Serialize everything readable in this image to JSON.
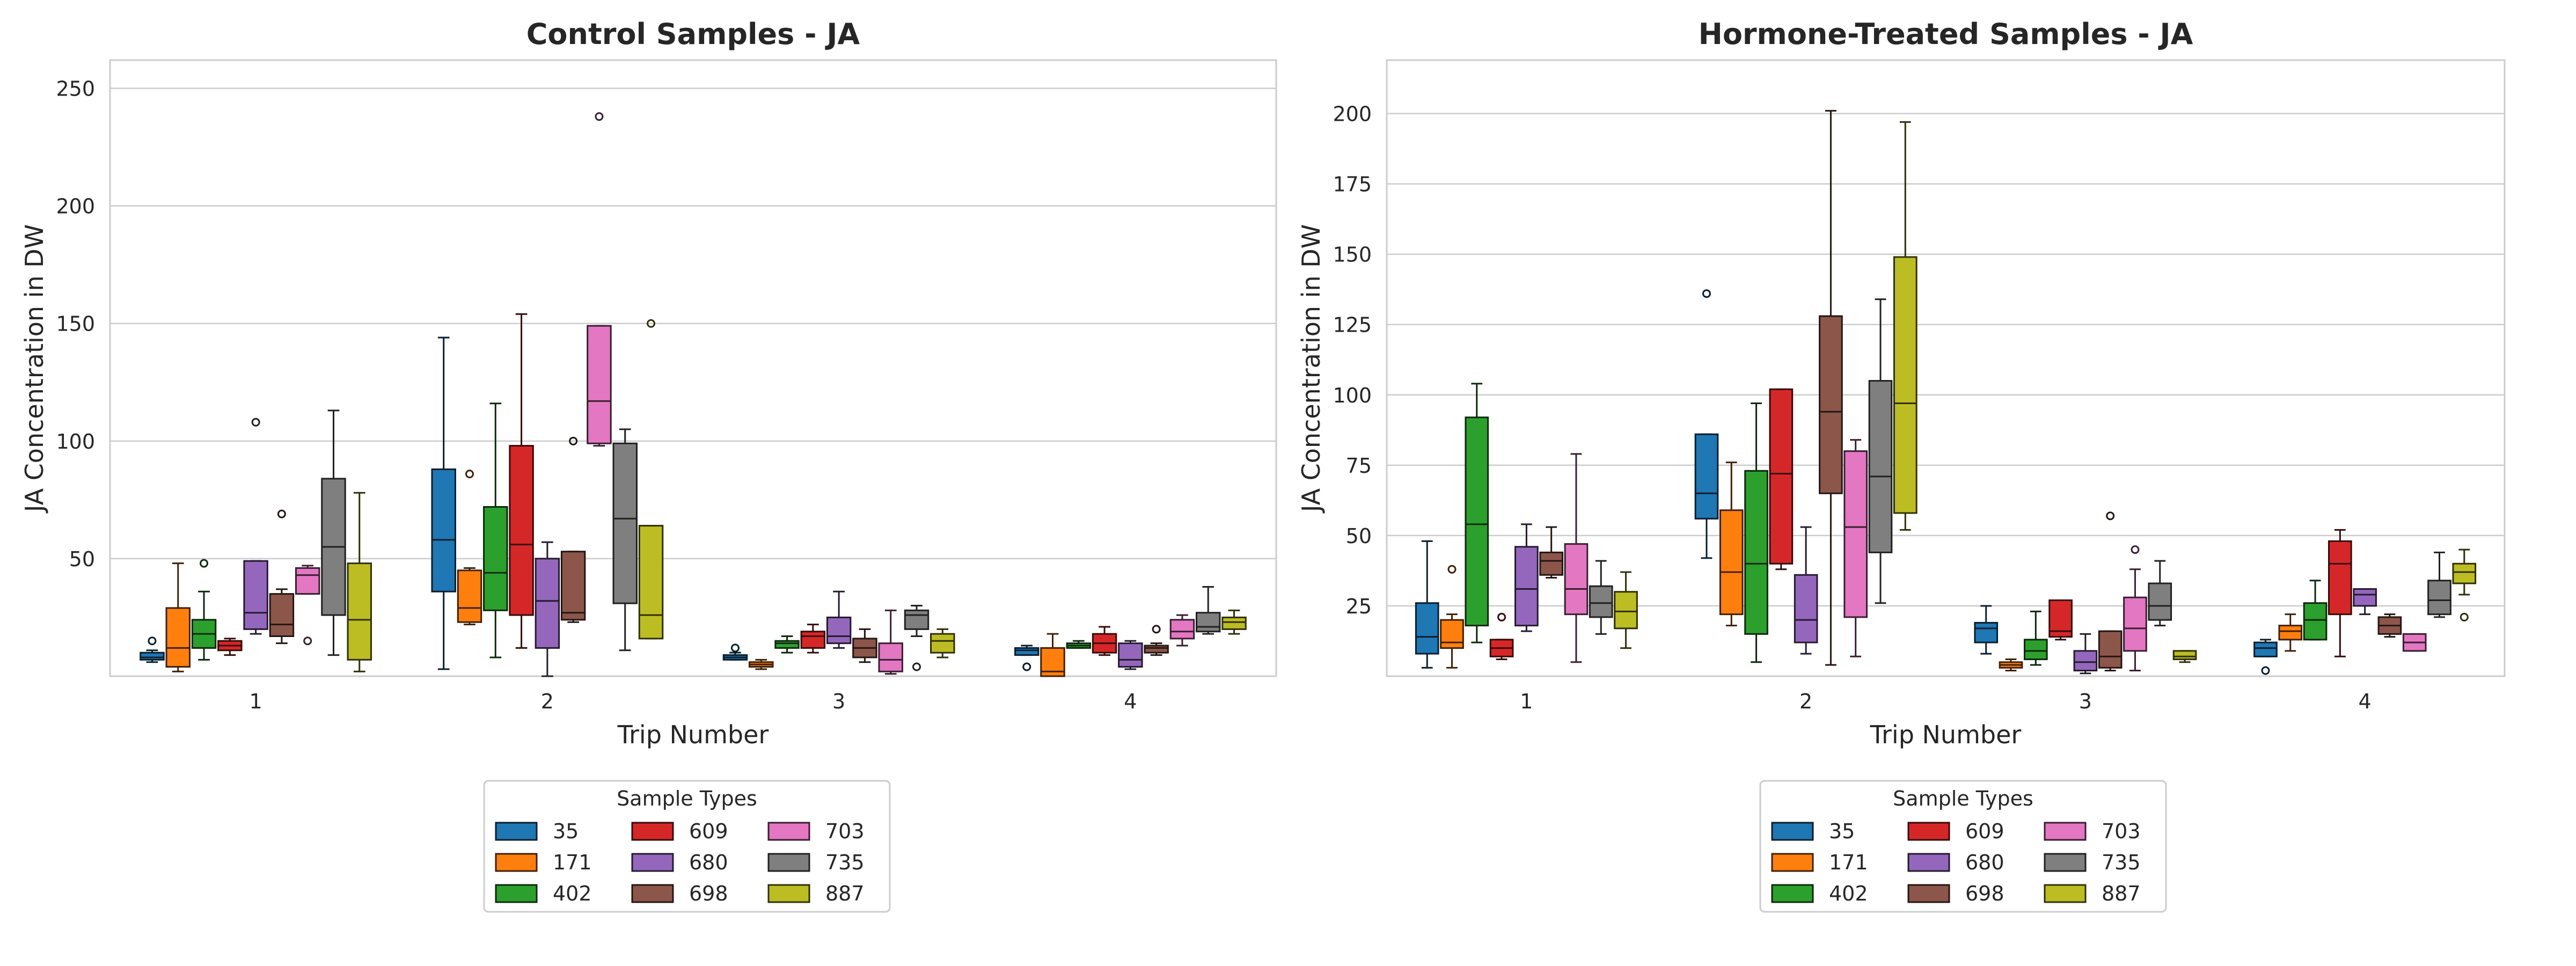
{
  "chart_data": [
    {
      "type": "box",
      "title": "Control Samples - JA",
      "xlabel": "Trip Number",
      "ylabel": "JA Concentration in DW",
      "categories": [
        "1",
        "2",
        "3",
        "4"
      ],
      "ylim": [
        0,
        262
      ],
      "yticks": [
        50,
        100,
        150,
        200,
        250
      ],
      "grid": true,
      "legend": {
        "title": "Sample Types",
        "placement": "below-center",
        "columns": 3
      },
      "series": [
        {
          "name": "35",
          "color": "#1f77b4",
          "boxes": [
            {
              "min": 6,
              "q1": 7,
              "median": 8,
              "q3": 10,
              "max": 11,
              "outliers": [
                15
              ]
            },
            {
              "min": 3,
              "q1": 36,
              "median": 58,
              "q3": 88,
              "max": 144,
              "outliers": []
            },
            {
              "min": 7,
              "q1": 7,
              "median": 8,
              "q3": 9,
              "max": 10,
              "outliers": [
                12
              ]
            },
            {
              "min": 9,
              "q1": 9,
              "median": 11,
              "q3": 12,
              "max": 13,
              "outliers": [
                4
              ]
            }
          ]
        },
        {
          "name": "171",
          "color": "#ff7f0e",
          "boxes": [
            {
              "min": 2,
              "q1": 4,
              "median": 12,
              "q3": 29,
              "max": 48,
              "outliers": []
            },
            {
              "min": 22,
              "q1": 23,
              "median": 29,
              "q3": 45,
              "max": 46,
              "outliers": [
                86
              ]
            },
            {
              "min": 3,
              "q1": 4,
              "median": 5,
              "q3": 6,
              "max": 7,
              "outliers": []
            },
            {
              "min": 0,
              "q1": 0,
              "median": 2,
              "q3": 12,
              "max": 18,
              "outliers": []
            }
          ]
        },
        {
          "name": "402",
          "color": "#2ca02c",
          "boxes": [
            {
              "min": 7,
              "q1": 12,
              "median": 18,
              "q3": 24,
              "max": 36,
              "outliers": [
                48
              ]
            },
            {
              "min": 8,
              "q1": 28,
              "median": 44,
              "q3": 72,
              "max": 116,
              "outliers": []
            },
            {
              "min": 10,
              "q1": 12,
              "median": 14,
              "q3": 15,
              "max": 17,
              "outliers": []
            },
            {
              "min": 12,
              "q1": 12,
              "median": 13,
              "q3": 14,
              "max": 15,
              "outliers": []
            }
          ]
        },
        {
          "name": "609",
          "color": "#d62728",
          "boxes": [
            {
              "min": 9,
              "q1": 11,
              "median": 13,
              "q3": 15,
              "max": 16,
              "outliers": []
            },
            {
              "min": 12,
              "q1": 26,
              "median": 56,
              "q3": 98,
              "max": 154,
              "outliers": []
            },
            {
              "min": 10,
              "q1": 12,
              "median": 17,
              "q3": 19,
              "max": 22,
              "outliers": []
            },
            {
              "min": 9,
              "q1": 10,
              "median": 14,
              "q3": 18,
              "max": 21,
              "outliers": []
            }
          ]
        },
        {
          "name": "680",
          "color": "#9467bd",
          "boxes": [
            {
              "min": 18,
              "q1": 20,
              "median": 27,
              "q3": 49,
              "max": 49,
              "outliers": [
                108
              ]
            },
            {
              "min": 0,
              "q1": 12,
              "median": 32,
              "q3": 50,
              "max": 57,
              "outliers": []
            },
            {
              "min": 12,
              "q1": 14,
              "median": 17,
              "q3": 25,
              "max": 36,
              "outliers": []
            },
            {
              "min": 3,
              "q1": 4,
              "median": 7,
              "q3": 14,
              "max": 15,
              "outliers": []
            }
          ]
        },
        {
          "name": "698",
          "color": "#8c564b",
          "boxes": [
            {
              "min": 14,
              "q1": 17,
              "median": 22,
              "q3": 35,
              "max": 37,
              "outliers": [
                69
              ]
            },
            {
              "min": 23,
              "q1": 24,
              "median": 27,
              "q3": 53,
              "max": 53,
              "outliers": [
                100
              ]
            },
            {
              "min": 6,
              "q1": 8,
              "median": 12,
              "q3": 16,
              "max": 20,
              "outliers": []
            },
            {
              "min": 9,
              "q1": 10,
              "median": 12,
              "q3": 13,
              "max": 14,
              "outliers": [
                20
              ]
            }
          ]
        },
        {
          "name": "703",
          "color": "#e377c2",
          "boxes": [
            {
              "min": 35,
              "q1": 35,
              "median": 43,
              "q3": 46,
              "max": 47,
              "outliers": [
                15
              ]
            },
            {
              "min": 98,
              "q1": 99,
              "median": 117,
              "q3": 149,
              "max": 149,
              "outliers": [
                238
              ]
            },
            {
              "min": 1,
              "q1": 2,
              "median": 7,
              "q3": 14,
              "max": 28,
              "outliers": []
            },
            {
              "min": 13,
              "q1": 16,
              "median": 19,
              "q3": 24,
              "max": 26,
              "outliers": []
            }
          ]
        },
        {
          "name": "735",
          "color": "#7f7f7f",
          "boxes": [
            {
              "min": 9,
              "q1": 26,
              "median": 55,
              "q3": 84,
              "max": 113,
              "outliers": []
            },
            {
              "min": 11,
              "q1": 31,
              "median": 67,
              "q3": 99,
              "max": 105,
              "outliers": []
            },
            {
              "min": 17,
              "q1": 20,
              "median": 26,
              "q3": 28,
              "max": 30,
              "outliers": [
                4
              ]
            },
            {
              "min": 18,
              "q1": 19,
              "median": 21,
              "q3": 27,
              "max": 38,
              "outliers": []
            }
          ]
        },
        {
          "name": "887",
          "color": "#bcbd22",
          "boxes": [
            {
              "min": 2,
              "q1": 7,
              "median": 24,
              "q3": 48,
              "max": 78,
              "outliers": []
            },
            {
              "min": 16,
              "q1": 16,
              "median": 26,
              "q3": 64,
              "max": 64,
              "outliers": [
                150
              ]
            },
            {
              "min": 8,
              "q1": 10,
              "median": 15,
              "q3": 18,
              "max": 20,
              "outliers": []
            },
            {
              "min": 18,
              "q1": 20,
              "median": 23,
              "q3": 25,
              "max": 28,
              "outliers": []
            }
          ]
        }
      ]
    },
    {
      "type": "box",
      "title": "Hormone-Treated Samples - JA",
      "xlabel": "Trip Number",
      "ylabel": "JA Concentration in DW",
      "categories": [
        "1",
        "2",
        "3",
        "4"
      ],
      "ylim": [
        0,
        219
      ],
      "yticks": [
        25,
        50,
        75,
        100,
        125,
        150,
        175,
        200
      ],
      "grid": true,
      "legend": {
        "title": "Sample Types",
        "placement": "below-center",
        "columns": 3
      },
      "series": [
        {
          "name": "35",
          "color": "#1f77b4",
          "boxes": [
            {
              "min": 3,
              "q1": 8,
              "median": 14,
              "q3": 26,
              "max": 48,
              "outliers": []
            },
            {
              "min": 42,
              "q1": 56,
              "median": 65,
              "q3": 86,
              "max": 86,
              "outliers": [
                136
              ]
            },
            {
              "min": 8,
              "q1": 12,
              "median": 17,
              "q3": 19,
              "max": 25,
              "outliers": []
            },
            {
              "min": 7,
              "q1": 7,
              "median": 10,
              "q3": 12,
              "max": 13,
              "outliers": [
                2
              ]
            }
          ]
        },
        {
          "name": "171",
          "color": "#ff7f0e",
          "boxes": [
            {
              "min": 3,
              "q1": 10,
              "median": 12,
              "q3": 20,
              "max": 22,
              "outliers": [
                38
              ]
            },
            {
              "min": 18,
              "q1": 22,
              "median": 37,
              "q3": 59,
              "max": 76,
              "outliers": []
            },
            {
              "min": 2,
              "q1": 3,
              "median": 4,
              "q3": 5,
              "max": 6,
              "outliers": []
            },
            {
              "min": 9,
              "q1": 13,
              "median": 16,
              "q3": 18,
              "max": 22,
              "outliers": []
            }
          ]
        },
        {
          "name": "402",
          "color": "#2ca02c",
          "boxes": [
            {
              "min": 12,
              "q1": 18,
              "median": 54,
              "q3": 92,
              "max": 104,
              "outliers": []
            },
            {
              "min": 5,
              "q1": 15,
              "median": 40,
              "q3": 73,
              "max": 97,
              "outliers": []
            },
            {
              "min": 4,
              "q1": 6,
              "median": 9,
              "q3": 13,
              "max": 23,
              "outliers": []
            },
            {
              "min": 13,
              "q1": 13,
              "median": 20,
              "q3": 26,
              "max": 34,
              "outliers": []
            }
          ]
        },
        {
          "name": "609",
          "color": "#d62728",
          "boxes": [
            {
              "min": 6,
              "q1": 7,
              "median": 10,
              "q3": 13,
              "max": 13,
              "outliers": [
                21
              ]
            },
            {
              "min": 38,
              "q1": 40,
              "median": 72,
              "q3": 102,
              "max": 102,
              "outliers": []
            },
            {
              "min": 13,
              "q1": 14,
              "median": 16,
              "q3": 27,
              "max": 27,
              "outliers": []
            },
            {
              "min": 7,
              "q1": 22,
              "median": 40,
              "q3": 48,
              "max": 52,
              "outliers": []
            }
          ]
        },
        {
          "name": "680",
          "color": "#9467bd",
          "boxes": [
            {
              "min": 16,
              "q1": 18,
              "median": 31,
              "q3": 46,
              "max": 54,
              "outliers": []
            },
            {
              "min": 8,
              "q1": 12,
              "median": 20,
              "q3": 36,
              "max": 53,
              "outliers": []
            },
            {
              "min": 1,
              "q1": 2,
              "median": 5,
              "q3": 9,
              "max": 15,
              "outliers": []
            },
            {
              "min": 22,
              "q1": 25,
              "median": 29,
              "q3": 31,
              "max": 31,
              "outliers": []
            }
          ]
        },
        {
          "name": "698",
          "color": "#8c564b",
          "boxes": [
            {
              "min": 35,
              "q1": 36,
              "median": 41,
              "q3": 44,
              "max": 53,
              "outliers": []
            },
            {
              "min": 4,
              "q1": 65,
              "median": 94,
              "q3": 128,
              "max": 201,
              "outliers": []
            },
            {
              "min": 2,
              "q1": 3,
              "median": 7,
              "q3": 16,
              "max": 16,
              "outliers": [
                57
              ]
            },
            {
              "min": 14,
              "q1": 15,
              "median": 18,
              "q3": 21,
              "max": 22,
              "outliers": []
            }
          ]
        },
        {
          "name": "703",
          "color": "#e377c2",
          "boxes": [
            {
              "min": 5,
              "q1": 22,
              "median": 31,
              "q3": 47,
              "max": 79,
              "outliers": []
            },
            {
              "min": 7,
              "q1": 21,
              "median": 53,
              "q3": 80,
              "max": 84,
              "outliers": []
            },
            {
              "min": 2,
              "q1": 9,
              "median": 17,
              "q3": 28,
              "max": 38,
              "outliers": [
                45
              ]
            },
            {
              "min": 9,
              "q1": 9,
              "median": 12,
              "q3": 15,
              "max": 15,
              "outliers": []
            }
          ]
        },
        {
          "name": "735",
          "color": "#7f7f7f",
          "boxes": [
            {
              "min": 15,
              "q1": 21,
              "median": 26,
              "q3": 32,
              "max": 41,
              "outliers": []
            },
            {
              "min": 26,
              "q1": 44,
              "median": 71,
              "q3": 105,
              "max": 134,
              "outliers": []
            },
            {
              "min": 18,
              "q1": 20,
              "median": 25,
              "q3": 33,
              "max": 41,
              "outliers": []
            },
            {
              "min": 21,
              "q1": 22,
              "median": 27,
              "q3": 34,
              "max": 44,
              "outliers": []
            }
          ]
        },
        {
          "name": "887",
          "color": "#bcbd22",
          "boxes": [
            {
              "min": 10,
              "q1": 17,
              "median": 23,
              "q3": 30,
              "max": 37,
              "outliers": []
            },
            {
              "min": 52,
              "q1": 58,
              "median": 97,
              "q3": 149,
              "max": 197,
              "outliers": []
            },
            {
              "min": 5,
              "q1": 6,
              "median": 7,
              "q3": 9,
              "max": 9,
              "outliers": []
            },
            {
              "min": 29,
              "q1": 33,
              "median": 37,
              "q3": 40,
              "max": 45,
              "outliers": [
                21
              ]
            }
          ]
        }
      ]
    }
  ]
}
